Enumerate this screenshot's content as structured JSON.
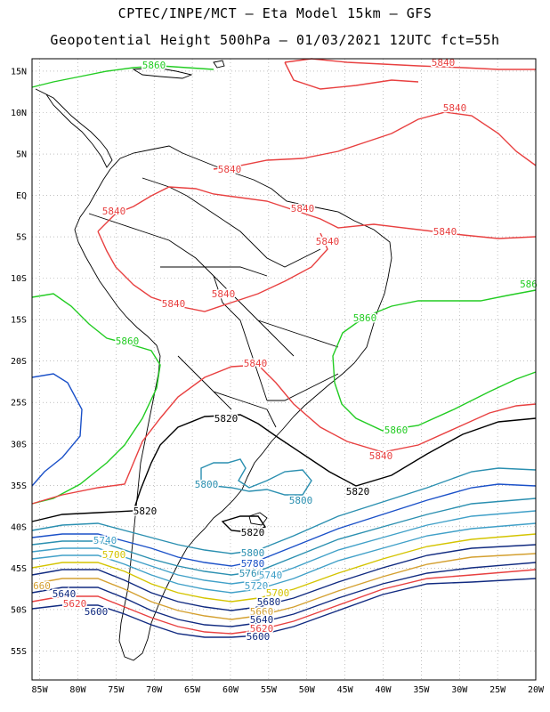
{
  "header": {
    "title_line1": "CPTEC/INPE/MCT –  Eta Model 15km – GFS",
    "title_line2": "Geopotential Height 500hPa – 01/03/2021 12UTC fct=55h"
  },
  "map": {
    "lon_range": [
      -86,
      -20
    ],
    "lat_range": [
      -58.5,
      16.5
    ],
    "lat_ticks": [
      {
        "value": 15,
        "label": "15N"
      },
      {
        "value": 10,
        "label": "10N"
      },
      {
        "value": 5,
        "label": "5N"
      },
      {
        "value": 0,
        "label": "EQ"
      },
      {
        "value": -5,
        "label": "5S"
      },
      {
        "value": -10,
        "label": "10S"
      },
      {
        "value": -15,
        "label": "15S"
      },
      {
        "value": -20,
        "label": "20S"
      },
      {
        "value": -25,
        "label": "25S"
      },
      {
        "value": -30,
        "label": "30S"
      },
      {
        "value": -35,
        "label": "35S"
      },
      {
        "value": -40,
        "label": "40S"
      },
      {
        "value": -45,
        "label": "45S"
      },
      {
        "value": -50,
        "label": "50S"
      },
      {
        "value": -55,
        "label": "55S"
      }
    ],
    "lon_ticks": [
      {
        "value": -85,
        "label": "85W"
      },
      {
        "value": -80,
        "label": "80W"
      },
      {
        "value": -75,
        "label": "75W"
      },
      {
        "value": -70,
        "label": "70W"
      },
      {
        "value": -65,
        "label": "65W"
      },
      {
        "value": -60,
        "label": "60W"
      },
      {
        "value": -55,
        "label": "55W"
      },
      {
        "value": -50,
        "label": "50W"
      },
      {
        "value": -45,
        "label": "45W"
      },
      {
        "value": -40,
        "label": "40W"
      },
      {
        "value": -35,
        "label": "35W"
      },
      {
        "value": -30,
        "label": "30W"
      },
      {
        "value": -25,
        "label": "25W"
      },
      {
        "value": -20,
        "label": "20W"
      }
    ],
    "grid": true,
    "grid_style": "dotted",
    "coastline_color": "#000000",
    "contour_labels": [
      {
        "text": "5860",
        "color": "#22cc22"
      },
      {
        "text": "5840",
        "color": "#e84040"
      },
      {
        "text": "5840",
        "color": "#e84040"
      },
      {
        "text": "5840",
        "color": "#e84040"
      },
      {
        "text": "5840",
        "color": "#e84040"
      },
      {
        "text": "5840",
        "color": "#e84040"
      },
      {
        "text": "5840",
        "color": "#e84040"
      },
      {
        "text": "5840",
        "color": "#e84040"
      },
      {
        "text": "5840",
        "color": "#e84040"
      },
      {
        "text": "5840",
        "color": "#e84040"
      },
      {
        "text": "5840",
        "color": "#e84040"
      },
      {
        "text": "586",
        "color": "#22cc22"
      },
      {
        "text": "5860",
        "color": "#22cc22"
      },
      {
        "text": "5860",
        "color": "#22cc22"
      },
      {
        "text": "5860",
        "color": "#22cc22"
      },
      {
        "text": "5840",
        "color": "#e84040"
      },
      {
        "text": "5820",
        "color": "#000000"
      },
      {
        "text": "5800",
        "color": "#2a8fb0"
      },
      {
        "text": "5800",
        "color": "#2a8fb0"
      },
      {
        "text": "5820",
        "color": "#000000"
      },
      {
        "text": "5820",
        "color": "#000000"
      },
      {
        "text": "5820",
        "color": "#000000"
      },
      {
        "text": "5740",
        "color": "#40a0c8"
      },
      {
        "text": "5700",
        "color": "#d4c400"
      },
      {
        "text": "5800",
        "color": "#2a8fb0"
      },
      {
        "text": "5780",
        "color": "#1a50c8"
      },
      {
        "text": "5760",
        "color": "#2a8fb0"
      },
      {
        "text": "5740",
        "color": "#40a0c8"
      },
      {
        "text": "5720",
        "color": "#40a0c8"
      },
      {
        "text": "5700",
        "color": "#d4c400"
      },
      {
        "text": "660",
        "color": "#d4a030"
      },
      {
        "text": "5640",
        "color": "#102a80"
      },
      {
        "text": "5620",
        "color": "#e84040"
      },
      {
        "text": "5600",
        "color": "#102a80"
      },
      {
        "text": "5680",
        "color": "#102a80"
      },
      {
        "text": "5660",
        "color": "#d4a030"
      },
      {
        "text": "5640",
        "color": "#102a80"
      },
      {
        "text": "5620",
        "color": "#e84040"
      },
      {
        "text": "5600",
        "color": "#102a80"
      }
    ]
  }
}
